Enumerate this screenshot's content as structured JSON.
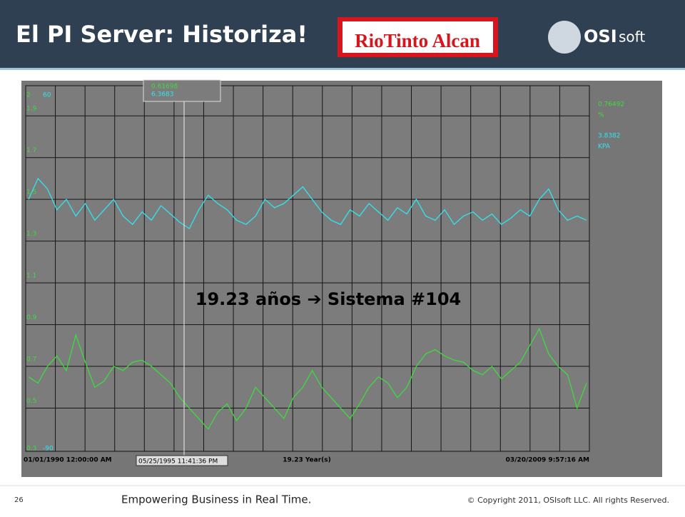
{
  "header": {
    "title": "El PI Server: Historiza!",
    "logo_left": "RioTinto Alcan",
    "logo_right_bold": "OSI",
    "logo_right_light": "soft"
  },
  "trend": {
    "overlay": "19.23 años ➔ Sistema #104",
    "left_scale_top": "2",
    "left_scale_bottom": "0.3",
    "right_scale_top": "60",
    "right_scale_bottom": "-90",
    "ylim": [
      0.3,
      2
    ],
    "yticks": [
      1.9,
      1.7,
      1.5,
      1.3,
      1.1,
      0.9,
      0.7,
      0.5
    ],
    "cursor_values": [
      "0.61698",
      "6.3683"
    ],
    "legend": [
      {
        "value": "0.76492",
        "unit": "%"
      },
      {
        "value": "3.8382",
        "unit": "KPA"
      }
    ],
    "start_time": "01/01/1990 12:00:00 AM",
    "cursor_time": "05/25/1995 11:41:36 PM",
    "span": "19.23 Year(s)",
    "end_time": "03/20/2009 9:57:16 AM",
    "series": [
      {
        "color": "#2ee6f0",
        "values": [
          1.5,
          1.6,
          1.55,
          1.45,
          1.5,
          1.42,
          1.48,
          1.4,
          1.45,
          1.5,
          1.42,
          1.38,
          1.44,
          1.4,
          1.47,
          1.43,
          1.39,
          1.36,
          1.45,
          1.52,
          1.48,
          1.45,
          1.4,
          1.38,
          1.42,
          1.5,
          1.46,
          1.48,
          1.52,
          1.56,
          1.5,
          1.44,
          1.4,
          1.38,
          1.45,
          1.42,
          1.48,
          1.44,
          1.4,
          1.46,
          1.43,
          1.5,
          1.42,
          1.4,
          1.45,
          1.38,
          1.42,
          1.44,
          1.4,
          1.43,
          1.38,
          1.41,
          1.45,
          1.42,
          1.5,
          1.55,
          1.45,
          1.4,
          1.42,
          1.4
        ]
      },
      {
        "color": "#3ddc3d",
        "values": [
          0.65,
          0.62,
          0.7,
          0.75,
          0.68,
          0.85,
          0.72,
          0.6,
          0.63,
          0.7,
          0.68,
          0.72,
          0.73,
          0.7,
          0.66,
          0.62,
          0.55,
          0.5,
          0.45,
          0.4,
          0.48,
          0.52,
          0.44,
          0.5,
          0.6,
          0.55,
          0.5,
          0.45,
          0.55,
          0.6,
          0.68,
          0.6,
          0.55,
          0.5,
          0.45,
          0.52,
          0.6,
          0.65,
          0.62,
          0.55,
          0.6,
          0.7,
          0.76,
          0.78,
          0.75,
          0.73,
          0.72,
          0.68,
          0.66,
          0.7,
          0.64,
          0.68,
          0.72,
          0.8,
          0.88,
          0.76,
          0.7,
          0.66,
          0.5,
          0.62
        ]
      }
    ]
  },
  "footer": {
    "page": "26",
    "tagline": "Empowering Business in Real Time.",
    "copyright": "© Copyright 2011, OSIsoft LLC. All rights Reserved."
  }
}
